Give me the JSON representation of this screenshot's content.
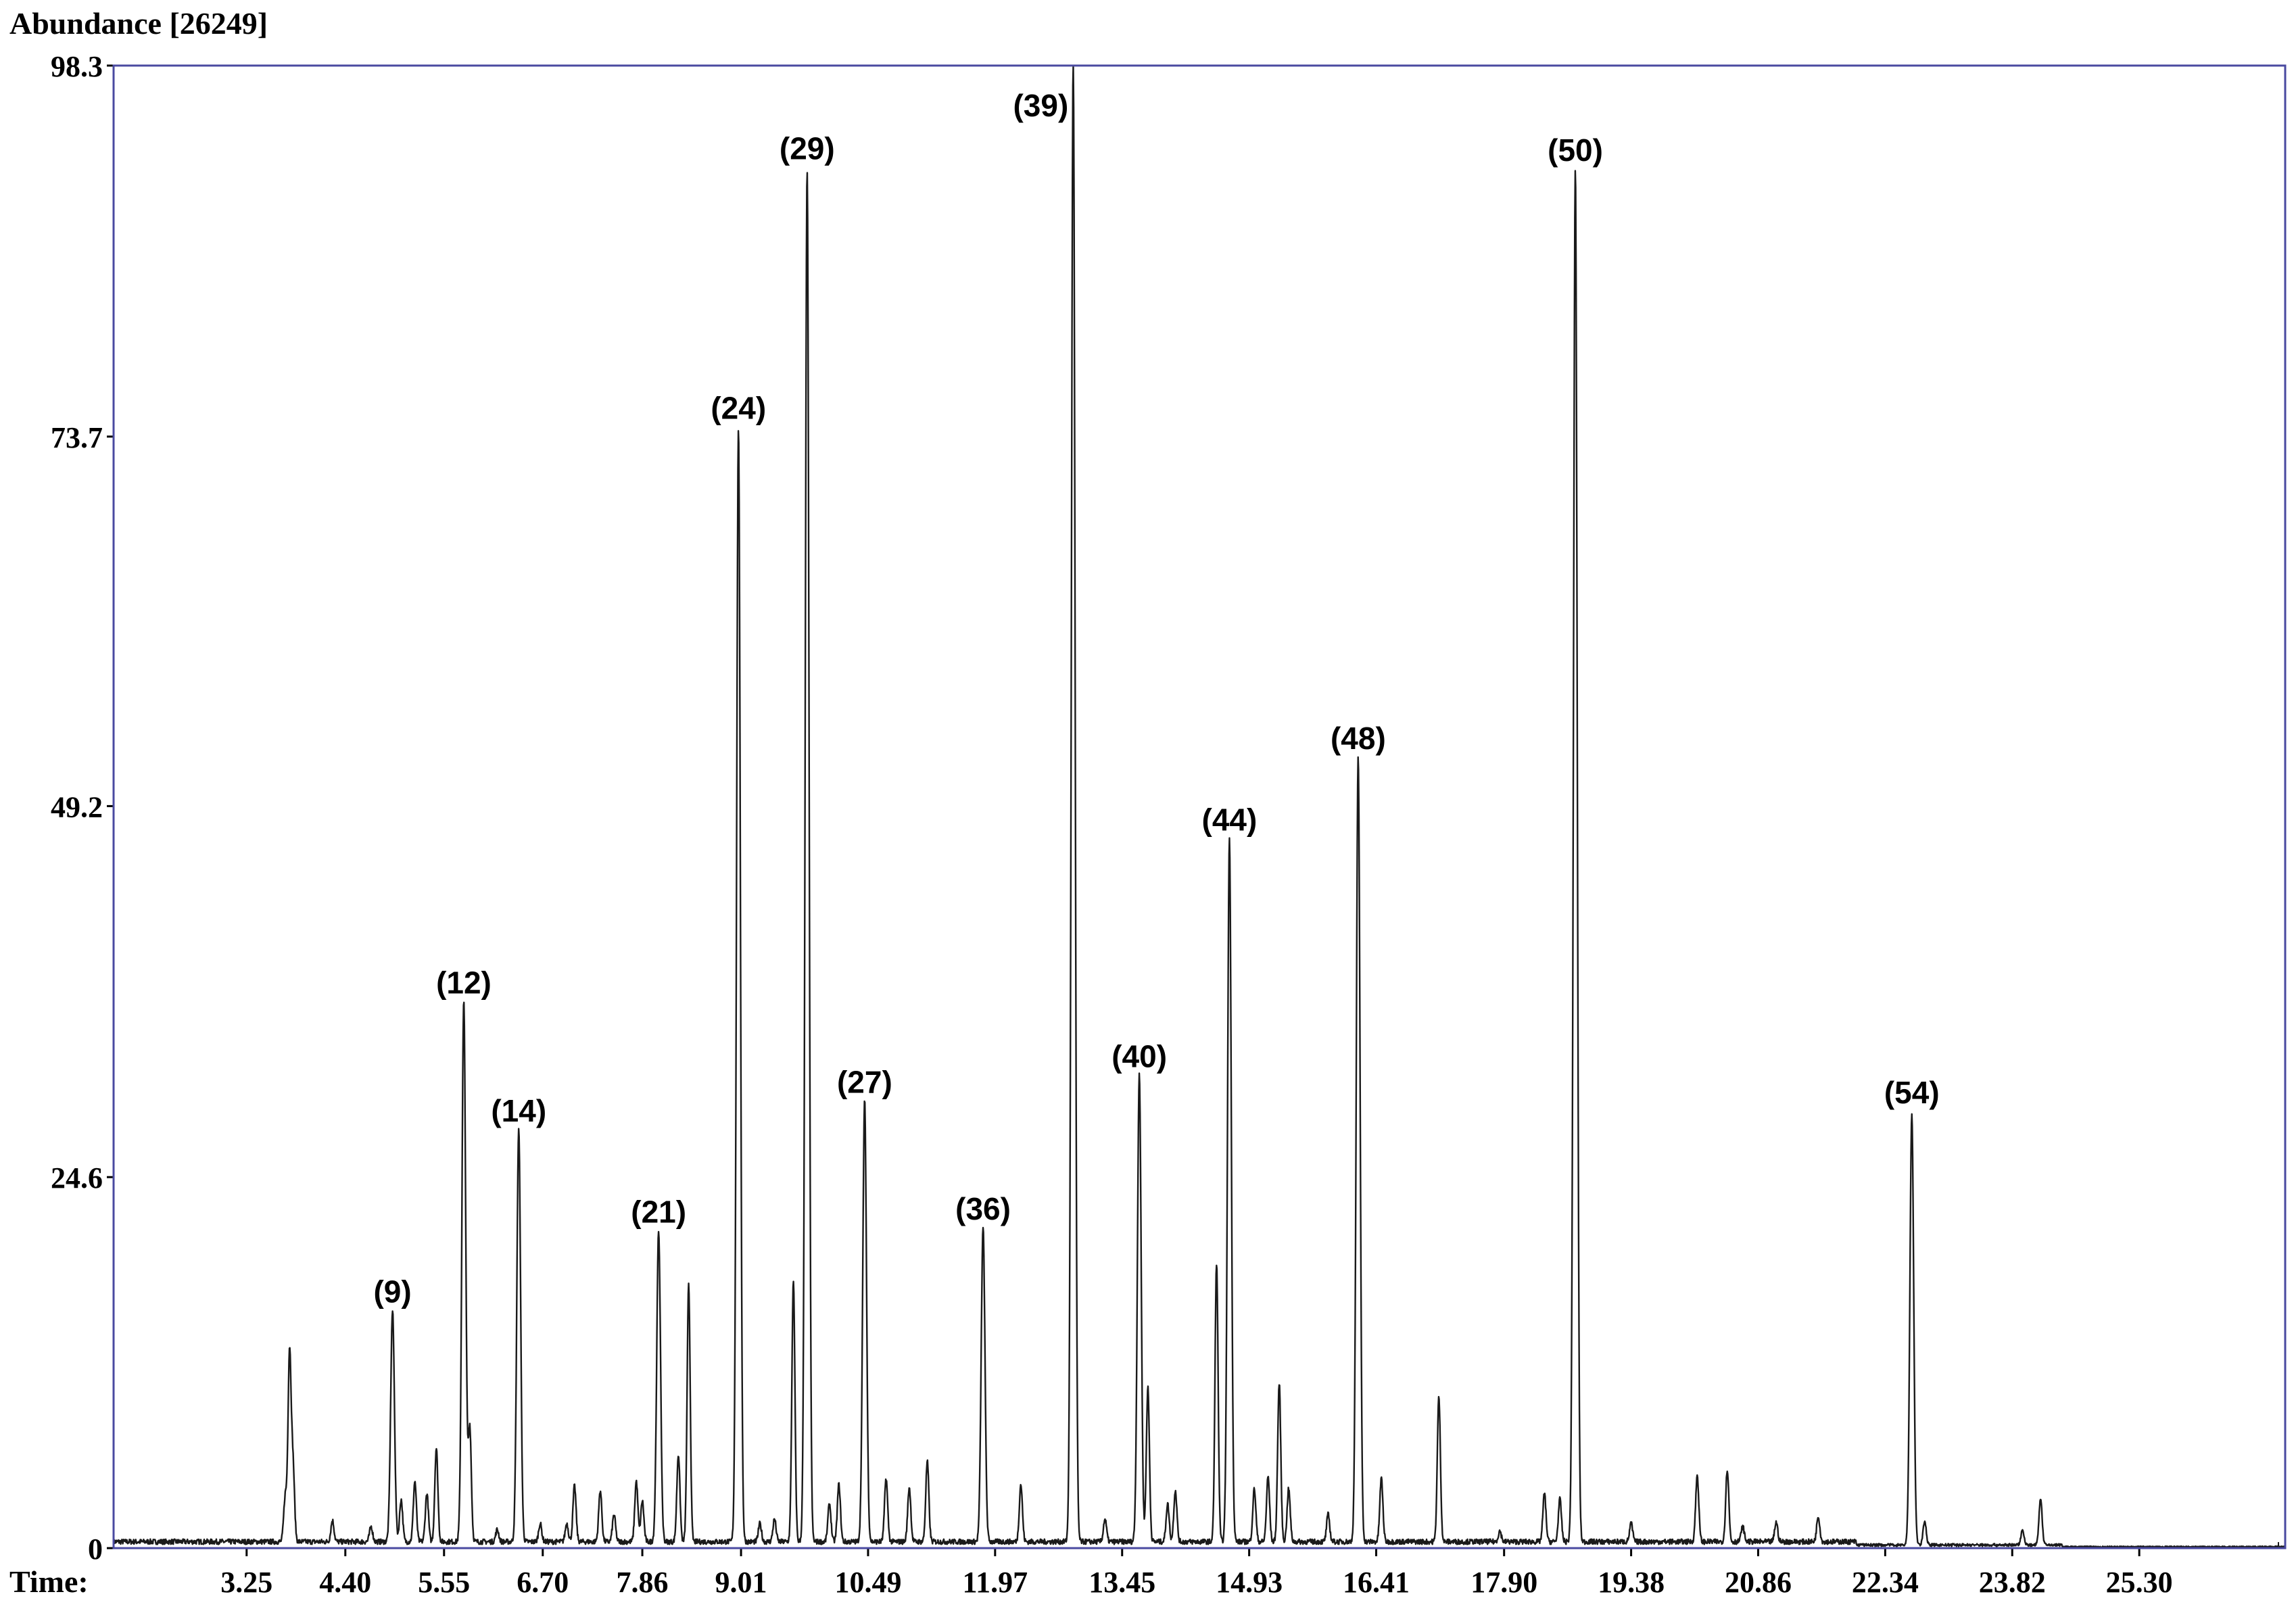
{
  "header": {
    "ylabel": "Abundance [26249]",
    "xlabel": "Time:"
  },
  "chart_data": {
    "type": "line",
    "title": "",
    "xlabel": "Time:",
    "ylabel": "Abundance [26249]",
    "xlim": [
      1.7,
      27.0
    ],
    "ylim": [
      0,
      98.3
    ],
    "x_ticks": [
      "3.25",
      "4.40",
      "5.55",
      "6.70",
      "7.86",
      "9.01",
      "10.49",
      "11.97",
      "13.45",
      "14.93",
      "16.41",
      "17.90",
      "19.38",
      "20.86",
      "22.34",
      "23.82",
      "25.30"
    ],
    "y_ticks": [
      "0",
      "24.6",
      "49.2",
      "73.7",
      "98.3"
    ],
    "grid": false,
    "legend": "none",
    "colors": {
      "trace": "#1a1a1a",
      "frame": "#4a4aa0",
      "text": "#000000"
    },
    "labeled_peaks": [
      {
        "label": "(9)",
        "x": 4.95,
        "y": 15.3
      },
      {
        "label": "(12)",
        "x": 5.78,
        "y": 35.8
      },
      {
        "label": "(14)",
        "x": 6.42,
        "y": 27.3
      },
      {
        "label": "(21)",
        "x": 8.05,
        "y": 20.6
      },
      {
        "label": "(24)",
        "x": 8.98,
        "y": 73.9
      },
      {
        "label": "(29)",
        "x": 9.78,
        "y": 91.1
      },
      {
        "label": "(27)",
        "x": 10.45,
        "y": 29.2
      },
      {
        "label": "(36)",
        "x": 11.83,
        "y": 20.8
      },
      {
        "label": "(39)",
        "x": 12.88,
        "y": 98.3
      },
      {
        "label": "(40)",
        "x": 13.65,
        "y": 30.9
      },
      {
        "label": "(44)",
        "x": 14.7,
        "y": 46.6
      },
      {
        "label": "(48)",
        "x": 16.2,
        "y": 52.0
      },
      {
        "label": "(50)",
        "x": 18.73,
        "y": 91.0
      },
      {
        "label": "(54)",
        "x": 22.65,
        "y": 28.5
      }
    ],
    "minor_peaks": [
      {
        "x": 3.75,
        "y": 12.5
      },
      {
        "x": 3.7,
        "y": 3.0
      },
      {
        "x": 3.79,
        "y": 5.0
      },
      {
        "x": 4.25,
        "y": 1.4
      },
      {
        "x": 4.7,
        "y": 1.0
      },
      {
        "x": 5.05,
        "y": 2.8
      },
      {
        "x": 5.21,
        "y": 4.0
      },
      {
        "x": 5.35,
        "y": 3.2
      },
      {
        "x": 5.46,
        "y": 6.2
      },
      {
        "x": 5.85,
        "y": 7.6
      },
      {
        "x": 6.17,
        "y": 0.8
      },
      {
        "x": 6.67,
        "y": 1.2
      },
      {
        "x": 6.98,
        "y": 1.2
      },
      {
        "x": 7.07,
        "y": 3.7
      },
      {
        "x": 7.37,
        "y": 3.4
      },
      {
        "x": 7.53,
        "y": 1.8
      },
      {
        "x": 7.79,
        "y": 4.0
      },
      {
        "x": 7.86,
        "y": 2.7
      },
      {
        "x": 8.28,
        "y": 5.8
      },
      {
        "x": 8.4,
        "y": 17.0
      },
      {
        "x": 9.23,
        "y": 1.2
      },
      {
        "x": 9.4,
        "y": 1.5
      },
      {
        "x": 9.62,
        "y": 17.2
      },
      {
        "x": 10.04,
        "y": 2.5
      },
      {
        "x": 10.15,
        "y": 3.8
      },
      {
        "x": 10.7,
        "y": 4.2
      },
      {
        "x": 10.97,
        "y": 3.6
      },
      {
        "x": 11.18,
        "y": 5.3
      },
      {
        "x": 12.27,
        "y": 3.8
      },
      {
        "x": 13.25,
        "y": 1.5
      },
      {
        "x": 13.75,
        "y": 10.2
      },
      {
        "x": 13.98,
        "y": 2.5
      },
      {
        "x": 14.07,
        "y": 3.4
      },
      {
        "x": 14.55,
        "y": 18.5
      },
      {
        "x": 14.99,
        "y": 3.5
      },
      {
        "x": 15.15,
        "y": 4.3
      },
      {
        "x": 15.28,
        "y": 10.5
      },
      {
        "x": 15.39,
        "y": 3.5
      },
      {
        "x": 15.85,
        "y": 1.8
      },
      {
        "x": 16.47,
        "y": 4.2
      },
      {
        "x": 17.14,
        "y": 9.6
      },
      {
        "x": 17.85,
        "y": 0.7
      },
      {
        "x": 18.37,
        "y": 3.2
      },
      {
        "x": 18.55,
        "y": 2.8
      },
      {
        "x": 19.38,
        "y": 1.2
      },
      {
        "x": 20.15,
        "y": 4.4
      },
      {
        "x": 20.5,
        "y": 4.8
      },
      {
        "x": 20.68,
        "y": 1.0
      },
      {
        "x": 21.07,
        "y": 1.3
      },
      {
        "x": 21.56,
        "y": 1.7
      },
      {
        "x": 22.8,
        "y": 1.6
      },
      {
        "x": 23.94,
        "y": 1.0
      },
      {
        "x": 24.15,
        "y": 3.1
      }
    ]
  }
}
